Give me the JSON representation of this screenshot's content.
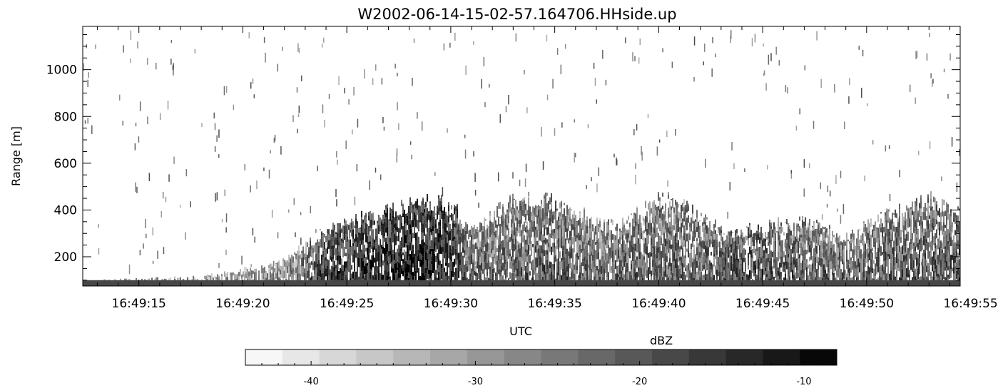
{
  "chart_data": {
    "type": "heatmap",
    "title": "W2002-06-14-15-02-57.164706.HHside.up",
    "xlabel": "UTC",
    "ylabel": "Range [m]",
    "x_ticks": [
      "16:49:15",
      "16:49:20",
      "16:49:25",
      "16:49:30",
      "16:49:35",
      "16:49:40",
      "16:49:45",
      "16:49:50",
      "16:49:55"
    ],
    "x_range_seconds": [
      12.3,
      54.5
    ],
    "y_ticks": [
      200,
      400,
      600,
      800,
      1000
    ],
    "y_range": [
      75,
      1185
    ],
    "colorbar": {
      "label": "dBZ",
      "range": [
        -44,
        -8
      ],
      "ticks": [
        -40,
        -30,
        -20,
        -10
      ],
      "steps": 16,
      "colormap": "white-to-black grayscale"
    },
    "echo_profile": {
      "description_time_s": [
        12,
        18,
        22,
        24,
        26,
        28,
        30,
        31,
        33,
        35,
        37,
        38,
        40,
        42,
        43,
        45,
        47,
        49,
        51,
        53,
        55
      ],
      "top_height_m": [
        90,
        110,
        180,
        320,
        370,
        430,
        420,
        300,
        440,
        430,
        350,
        320,
        450,
        380,
        300,
        330,
        350,
        280,
        380,
        450,
        380
      ],
      "intensity_dbz": [
        -25,
        -30,
        -28,
        -16,
        -14,
        -12,
        -13,
        -22,
        -22,
        -20,
        -24,
        -22,
        -21,
        -22,
        -19,
        -18,
        -21,
        -22,
        -21,
        -20,
        -19
      ]
    }
  }
}
